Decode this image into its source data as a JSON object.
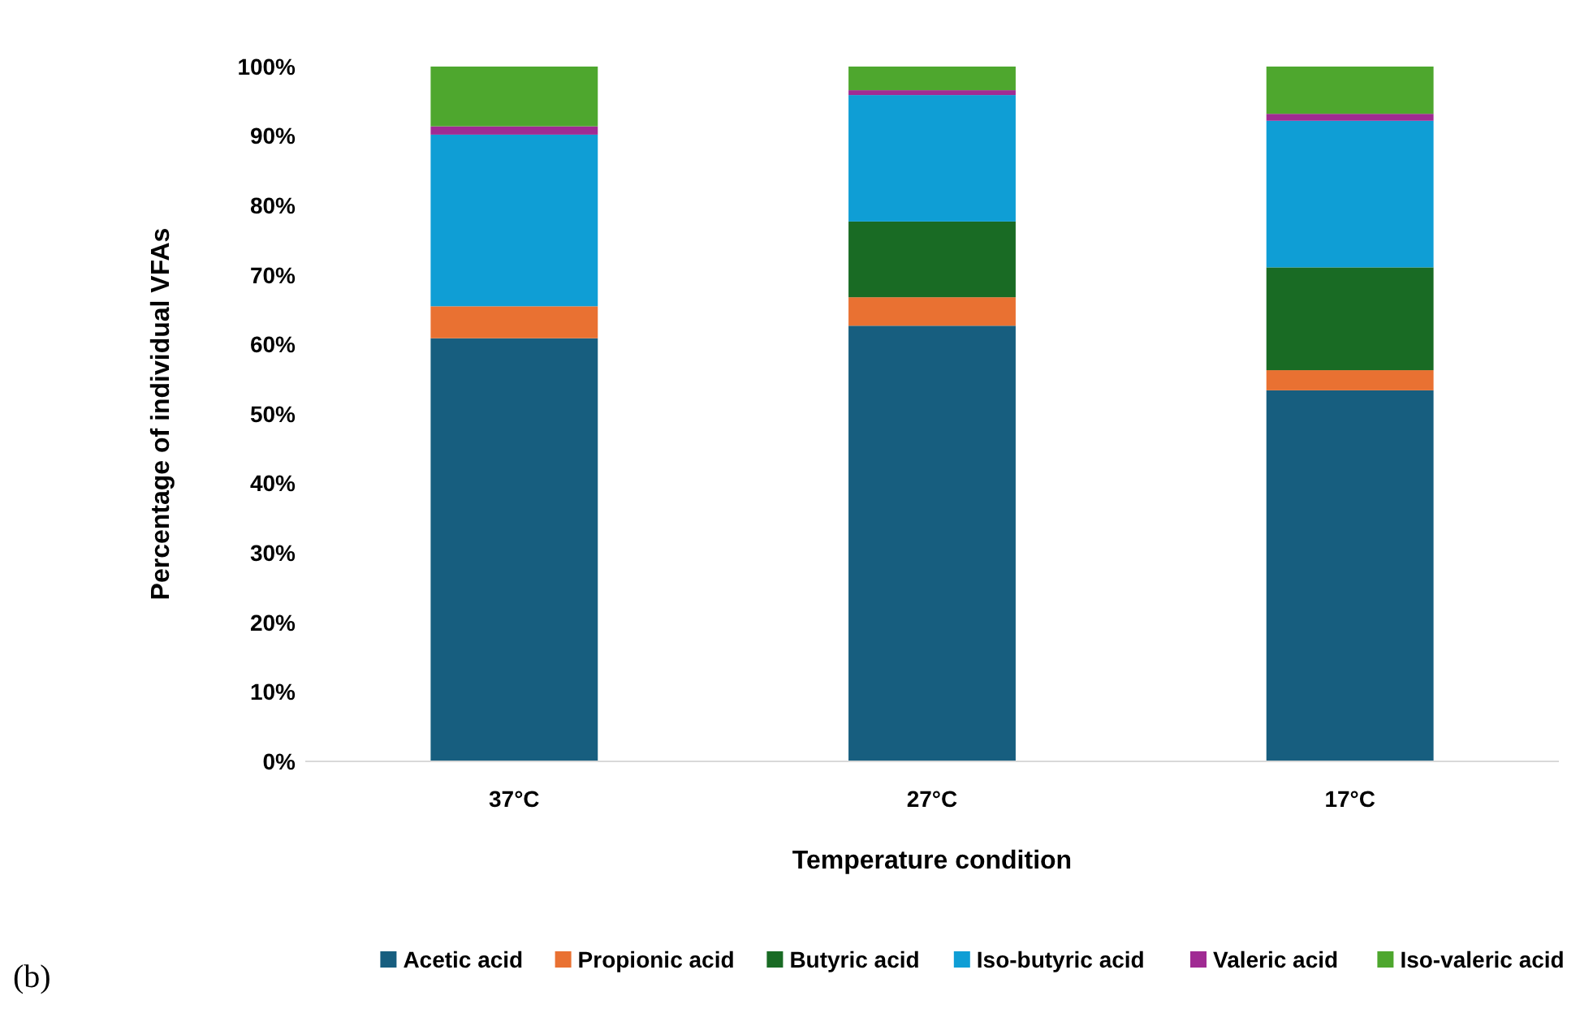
{
  "chart_data": {
    "type": "bar",
    "stacked": true,
    "xlabel": "Temperature condition",
    "ylabel": "Percentage of individual VFAs",
    "categories": [
      "37°C",
      "27°C",
      "17°C"
    ],
    "series": [
      {
        "name": "Acetic acid",
        "color": "#175e7f",
        "values": [
          60.9,
          62.7,
          53.4
        ]
      },
      {
        "name": "Propionic acid",
        "color": "#e97132",
        "values": [
          4.6,
          4.1,
          2.9
        ]
      },
      {
        "name": "Butyric acid",
        "color": "#196b24",
        "values": [
          0,
          10.9,
          14.8
        ]
      },
      {
        "name": "Iso-butyric acid",
        "color": "#0f9ed5",
        "values": [
          24.7,
          18.2,
          21.1
        ]
      },
      {
        "name": "Valeric acid",
        "color": "#a02b93",
        "values": [
          1.2,
          0.7,
          1.0
        ]
      },
      {
        "name": "Iso-valeric acid",
        "color": "#4ea72e",
        "values": [
          8.6,
          3.4,
          6.8
        ]
      }
    ],
    "ylim": [
      0,
      100
    ],
    "yticks": [
      {
        "value": 0,
        "label": "0%"
      },
      {
        "value": 10,
        "label": "10%"
      },
      {
        "value": 20,
        "label": "20%"
      },
      {
        "value": 30,
        "label": "30%"
      },
      {
        "value": 40,
        "label": "40%"
      },
      {
        "value": 50,
        "label": "50%"
      },
      {
        "value": 60,
        "label": "60%"
      },
      {
        "value": 70,
        "label": "70%"
      },
      {
        "value": 80,
        "label": "80%"
      },
      {
        "value": 90,
        "label": "90%"
      },
      {
        "value": 100,
        "label": "100%"
      }
    ],
    "grid": false,
    "legend": "bottom",
    "annotations": [
      "(b)"
    ]
  }
}
